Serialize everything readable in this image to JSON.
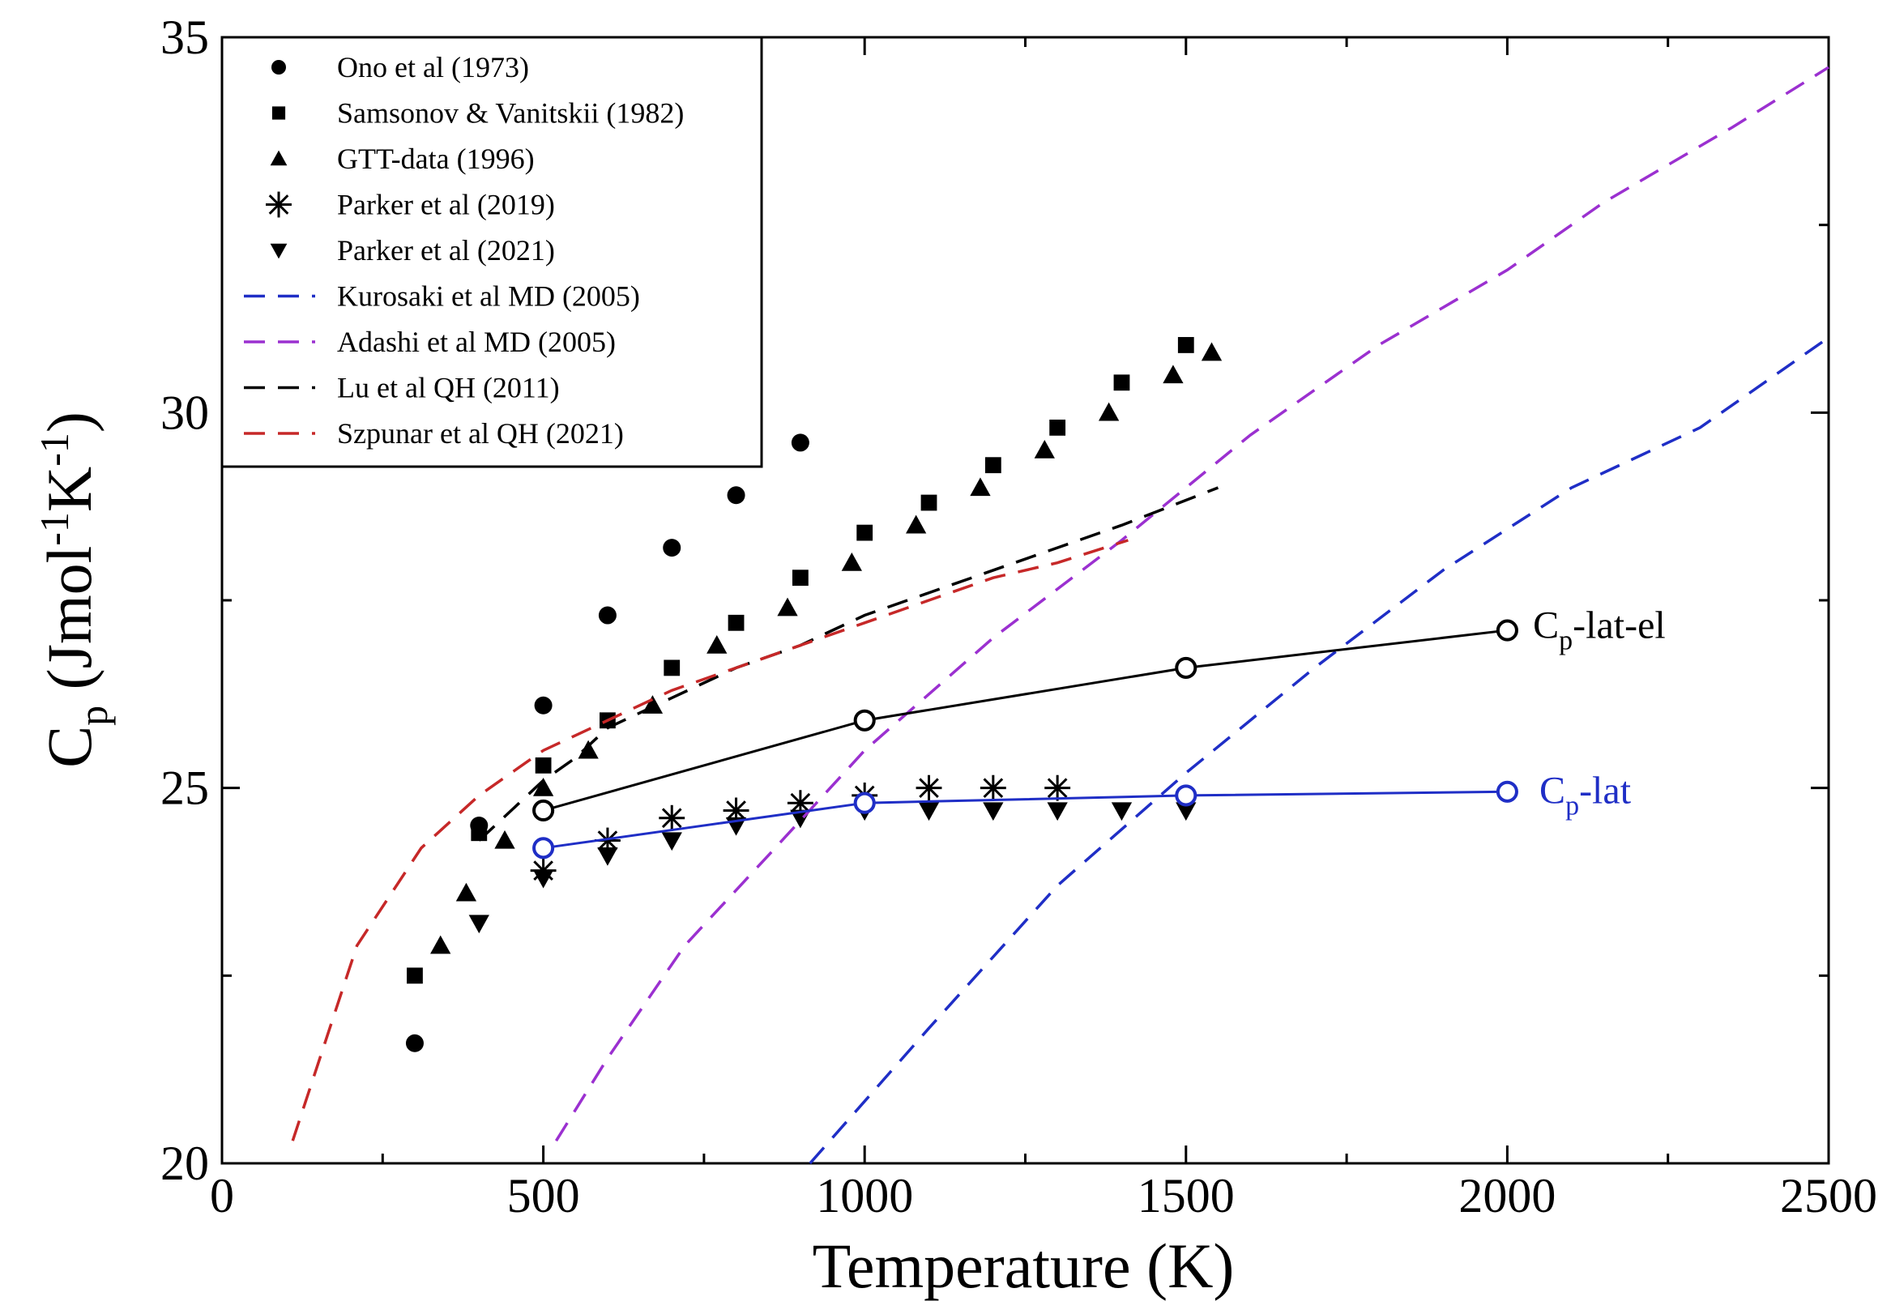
{
  "chart_data": {
    "type": "scatter",
    "title": "",
    "xlabel": "Temperature (K)",
    "ylabel": {
      "main": "C",
      "sub": "p",
      "units_open": " (Jmol",
      "sup1": "-1",
      "units_mid": "K",
      "sup2": "-1",
      "units_close": ")"
    },
    "xlim": [
      0,
      2500
    ],
    "ylim": [
      20,
      35
    ],
    "x_ticks": [
      0,
      500,
      1000,
      1500,
      2000,
      2500
    ],
    "x_tick_labels": [
      "0",
      "500",
      "1000",
      "1500",
      "2000",
      "2500"
    ],
    "y_ticks": [
      20,
      25,
      30,
      35
    ],
    "y_tick_labels": [
      "20",
      "25",
      "30",
      "35"
    ],
    "grid": false,
    "legend_position": "top-left",
    "series": [
      {
        "name": "Ono et al (1973)",
        "kind": "points",
        "marker": "circle",
        "color": "#000000",
        "x": [
          300,
          400,
          500,
          600,
          700,
          800,
          900
        ],
        "y": [
          21.6,
          24.5,
          26.1,
          27.3,
          28.2,
          28.9,
          29.6
        ]
      },
      {
        "name": "Samsonov & Vanitskii (1982)",
        "kind": "points",
        "marker": "square",
        "color": "#000000",
        "x": [
          300,
          400,
          500,
          600,
          700,
          800,
          900,
          1000,
          1100,
          1200,
          1300,
          1400,
          1500
        ],
        "y": [
          22.5,
          24.4,
          25.3,
          25.9,
          26.6,
          27.2,
          27.8,
          28.4,
          28.8,
          29.3,
          29.8,
          30.4,
          30.9
        ]
      },
      {
        "name": "GTT-data (1996)",
        "kind": "points",
        "marker": "triangle",
        "color": "#000000",
        "x": [
          340,
          380,
          440,
          500,
          570,
          670,
          770,
          880,
          980,
          1080,
          1180,
          1280,
          1380,
          1480,
          1540
        ],
        "y": [
          22.9,
          23.6,
          24.3,
          25.0,
          25.5,
          26.1,
          26.9,
          27.4,
          28.0,
          28.5,
          29.0,
          29.5,
          30.0,
          30.5,
          30.8
        ]
      },
      {
        "name": "Parker et al (2019)",
        "kind": "points",
        "marker": "asterisk",
        "color": "#000000",
        "x": [
          500,
          600,
          700,
          800,
          900,
          1000,
          1100,
          1200,
          1300
        ],
        "y": [
          23.9,
          24.3,
          24.6,
          24.7,
          24.8,
          24.9,
          25.0,
          25.0,
          25.0
        ]
      },
      {
        "name": "Parker et al (2021)",
        "kind": "points",
        "marker": "triangle-down",
        "color": "#000000",
        "x": [
          400,
          500,
          600,
          700,
          800,
          900,
          1000,
          1100,
          1200,
          1300,
          1400,
          1500
        ],
        "y": [
          23.2,
          23.8,
          24.1,
          24.3,
          24.5,
          24.6,
          24.7,
          24.7,
          24.7,
          24.7,
          24.7,
          24.7
        ]
      },
      {
        "name": "Kurosaki et al MD (2005)",
        "kind": "line",
        "dash": true,
        "color": "#1f2ec6",
        "x": [
          915,
          1100,
          1300,
          1500,
          1700,
          1900,
          2100,
          2300,
          2500
        ],
        "y": [
          20.0,
          21.8,
          23.7,
          25.2,
          26.6,
          27.9,
          29.0,
          29.8,
          31.0
        ]
      },
      {
        "name": "Adashi et al MD (2005)",
        "kind": "line",
        "dash": true,
        "color": "#9b30d0",
        "x": [
          520,
          600,
          720,
          850,
          1000,
          1200,
          1400,
          1600,
          1800,
          2000,
          2150,
          2350,
          2500
        ],
        "y": [
          20.3,
          21.4,
          22.9,
          24.1,
          25.5,
          27.0,
          28.3,
          29.7,
          30.9,
          31.9,
          32.8,
          33.8,
          34.6
        ]
      },
      {
        "name": "Lu et al QH (2011)",
        "kind": "line",
        "dash": true,
        "color": "#000000",
        "x": [
          400,
          450,
          500,
          550,
          600,
          700,
          800,
          900,
          1000,
          1100,
          1200,
          1300,
          1400,
          1550
        ],
        "y": [
          24.3,
          24.7,
          25.1,
          25.4,
          25.8,
          26.2,
          26.6,
          26.9,
          27.3,
          27.6,
          27.9,
          28.2,
          28.5,
          29.0
        ]
      },
      {
        "name": "Szpunar et al QH (2021)",
        "kind": "line",
        "dash": true,
        "color": "#c62828",
        "x": [
          110,
          210,
          310,
          400,
          500,
          600,
          700,
          800,
          900,
          1000,
          1100,
          1200,
          1300,
          1410
        ],
        "y": [
          20.3,
          22.9,
          24.2,
          24.9,
          25.5,
          25.9,
          26.3,
          26.6,
          26.9,
          27.2,
          27.5,
          27.8,
          28.0,
          28.3
        ]
      },
      {
        "name": "Cp-lat-el",
        "kind": "line-open-circles",
        "color": "#000000",
        "x": [
          500,
          1000,
          1500,
          2000
        ],
        "y": [
          24.7,
          25.9,
          26.6,
          27.1
        ]
      },
      {
        "name": "Cp-lat",
        "kind": "line-open-circles",
        "color": "#1f2ec6",
        "x": [
          500,
          1000,
          1500,
          2000
        ],
        "y": [
          24.2,
          24.8,
          24.9,
          24.95
        ]
      }
    ],
    "annotations": [
      {
        "main": "C",
        "sub": "p",
        "rest": "-lat-el",
        "x": 2040,
        "y": 27.15,
        "color": "#000000"
      },
      {
        "main": "C",
        "sub": "p",
        "rest": "-lat",
        "x": 2050,
        "y": 24.95,
        "color": "#1f2ec6"
      }
    ]
  }
}
